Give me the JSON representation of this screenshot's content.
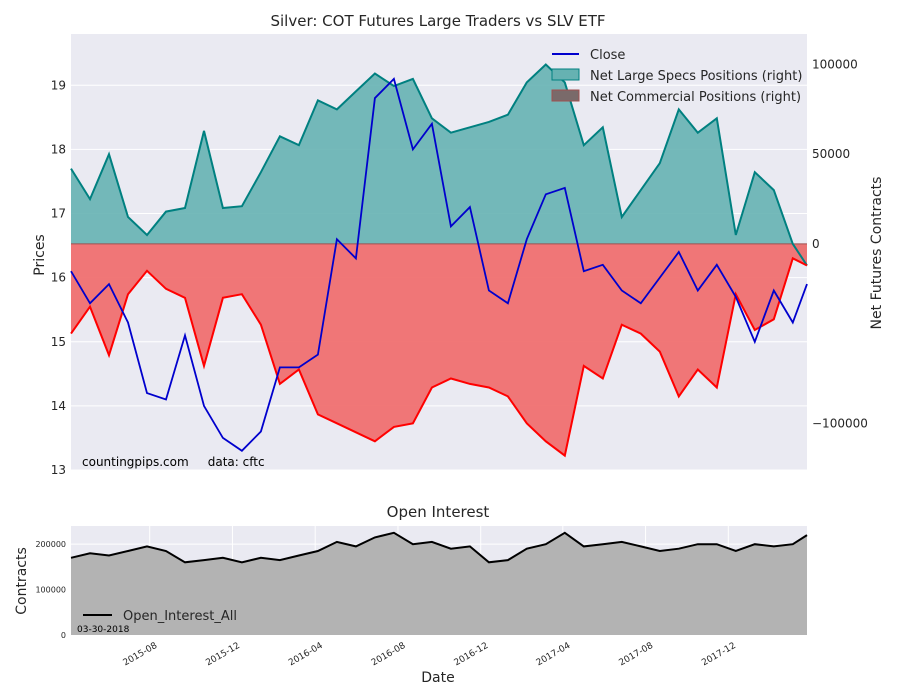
{
  "chart_data": [
    {
      "type": "line",
      "title": "Silver: COT Futures Large Traders vs SLV ETF",
      "ylabel_left": "Prices",
      "ylabel_right": "Net Futures Contracts",
      "ylim_left": [
        13,
        19.8
      ],
      "ylim_right": [
        -126000,
        117000
      ],
      "yticks_left": [
        13,
        14,
        15,
        16,
        17,
        18,
        19
      ],
      "yticks_right": [
        -100000,
        0,
        50000,
        100000
      ],
      "ytick_labels_right": [
        "−100000",
        "0",
        "50000",
        "100000"
      ],
      "legend_position": "upper-right",
      "grid": true,
      "annotation": "countingpips.com     data: cftc",
      "colors": {
        "close": "#0000cd",
        "specs_line": "#008080",
        "specs_fill": "#66b2b2",
        "comm_line": "#ff0000",
        "comm_fill": "#f07070",
        "plot_bg": "#eaeaf2"
      },
      "series": [
        {
          "name": "Close",
          "axis": "left",
          "x": [
            "2015-04-07",
            "2015-05-05",
            "2015-06-02",
            "2015-06-30",
            "2015-07-28",
            "2015-08-25",
            "2015-09-22",
            "2015-10-20",
            "2015-11-17",
            "2015-12-15",
            "2016-01-12",
            "2016-02-09",
            "2016-03-08",
            "2016-04-05",
            "2016-05-03",
            "2016-05-31",
            "2016-06-28",
            "2016-07-26",
            "2016-08-23",
            "2016-09-20",
            "2016-10-18",
            "2016-11-15",
            "2016-12-13",
            "2017-01-10",
            "2017-02-07",
            "2017-03-07",
            "2017-04-04",
            "2017-05-02",
            "2017-05-30",
            "2017-06-27",
            "2017-07-25",
            "2017-08-22",
            "2017-09-19",
            "2017-10-17",
            "2017-11-14",
            "2017-12-12",
            "2018-01-09",
            "2018-02-06",
            "2018-03-06",
            "2018-03-27"
          ],
          "values": [
            16.1,
            15.6,
            15.9,
            15.3,
            14.2,
            14.1,
            15.1,
            14.0,
            13.5,
            13.3,
            13.6,
            14.6,
            14.6,
            14.8,
            16.6,
            16.3,
            18.8,
            19.1,
            18.0,
            18.4,
            16.8,
            17.1,
            15.8,
            15.6,
            16.6,
            17.3,
            17.4,
            16.1,
            16.2,
            15.8,
            15.6,
            16.0,
            16.4,
            15.8,
            16.2,
            15.7,
            15.0,
            15.8,
            15.3,
            15.9
          ]
        },
        {
          "name": "Net Large Specs Positions (right)",
          "axis": "right",
          "x": [
            "2015-04-07",
            "2015-05-05",
            "2015-06-02",
            "2015-06-30",
            "2015-07-28",
            "2015-08-25",
            "2015-09-22",
            "2015-10-20",
            "2015-11-17",
            "2015-12-15",
            "2016-01-12",
            "2016-02-09",
            "2016-03-08",
            "2016-04-05",
            "2016-05-03",
            "2016-05-31",
            "2016-06-28",
            "2016-07-26",
            "2016-08-23",
            "2016-09-20",
            "2016-10-18",
            "2016-11-15",
            "2016-12-13",
            "2017-01-10",
            "2017-02-07",
            "2017-03-07",
            "2017-04-04",
            "2017-05-02",
            "2017-05-30",
            "2017-06-27",
            "2017-07-25",
            "2017-08-22",
            "2017-09-19",
            "2017-10-17",
            "2017-11-14",
            "2017-12-12",
            "2018-01-09",
            "2018-02-06",
            "2018-03-06",
            "2018-03-27"
          ],
          "values": [
            42000,
            25000,
            50000,
            15000,
            5000,
            18000,
            20000,
            63000,
            20000,
            21000,
            40000,
            60000,
            55000,
            80000,
            75000,
            85000,
            95000,
            88000,
            92000,
            70000,
            62000,
            65000,
            68000,
            72000,
            90000,
            100000,
            90000,
            55000,
            65000,
            15000,
            30000,
            45000,
            75000,
            62000,
            70000,
            5000,
            40000,
            30000,
            0,
            -12000
          ]
        },
        {
          "name": "Net Commercial Positions (right)",
          "axis": "right",
          "x": [
            "2015-04-07",
            "2015-05-05",
            "2015-06-02",
            "2015-06-30",
            "2015-07-28",
            "2015-08-25",
            "2015-09-22",
            "2015-10-20",
            "2015-11-17",
            "2015-12-15",
            "2016-01-12",
            "2016-02-09",
            "2016-03-08",
            "2016-04-05",
            "2016-05-03",
            "2016-05-31",
            "2016-06-28",
            "2016-07-26",
            "2016-08-23",
            "2016-09-20",
            "2016-10-18",
            "2016-11-15",
            "2016-12-13",
            "2017-01-10",
            "2017-02-07",
            "2017-03-07",
            "2017-04-04",
            "2017-05-02",
            "2017-05-30",
            "2017-06-27",
            "2017-07-25",
            "2017-08-22",
            "2017-09-19",
            "2017-10-17",
            "2017-11-14",
            "2017-12-12",
            "2018-01-09",
            "2018-02-06",
            "2018-03-06",
            "2018-03-27"
          ],
          "values": [
            -50000,
            -35000,
            -62000,
            -28000,
            -15000,
            -25000,
            -30000,
            -68000,
            -30000,
            -28000,
            -45000,
            -78000,
            -70000,
            -95000,
            -100000,
            -105000,
            -110000,
            -102000,
            -100000,
            -80000,
            -75000,
            -78000,
            -80000,
            -85000,
            -100000,
            -110000,
            -118000,
            -68000,
            -75000,
            -45000,
            -50000,
            -60000,
            -85000,
            -70000,
            -80000,
            -28000,
            -48000,
            -42000,
            -8000,
            -12000
          ]
        }
      ]
    },
    {
      "type": "area",
      "title": "Open Interest",
      "xlabel": "Date",
      "ylabel": "Contracts",
      "ylim": [
        0,
        240000
      ],
      "yticks": [
        0,
        100000,
        200000
      ],
      "x_tick_labels": [
        "2015-08",
        "2015-12",
        "2016-04",
        "2016-08",
        "2016-12",
        "2017-04",
        "2017-08",
        "2017-12"
      ],
      "legend_position": "lower-left",
      "annotation": "03-30-2018",
      "colors": {
        "line": "#000000",
        "fill": "#b3b3b3",
        "plot_bg": "#eaeaf2"
      },
      "series": [
        {
          "name": "Open_Interest_All",
          "x": [
            "2015-04-07",
            "2015-05-05",
            "2015-06-02",
            "2015-06-30",
            "2015-07-28",
            "2015-08-25",
            "2015-09-22",
            "2015-10-20",
            "2015-11-17",
            "2015-12-15",
            "2016-01-12",
            "2016-02-09",
            "2016-03-08",
            "2016-04-05",
            "2016-05-03",
            "2016-05-31",
            "2016-06-28",
            "2016-07-26",
            "2016-08-23",
            "2016-09-20",
            "2016-10-18",
            "2016-11-15",
            "2016-12-13",
            "2017-01-10",
            "2017-02-07",
            "2017-03-07",
            "2017-04-04",
            "2017-05-02",
            "2017-05-30",
            "2017-06-27",
            "2017-07-25",
            "2017-08-22",
            "2017-09-19",
            "2017-10-17",
            "2017-11-14",
            "2017-12-12",
            "2018-01-09",
            "2018-02-06",
            "2018-03-06",
            "2018-03-27"
          ],
          "values": [
            170000,
            180000,
            175000,
            185000,
            195000,
            185000,
            160000,
            165000,
            170000,
            160000,
            170000,
            165000,
            175000,
            185000,
            205000,
            195000,
            215000,
            225000,
            200000,
            205000,
            190000,
            195000,
            160000,
            165000,
            190000,
            200000,
            225000,
            195000,
            200000,
            205000,
            195000,
            185000,
            190000,
            200000,
            200000,
            185000,
            200000,
            195000,
            200000,
            220000
          ]
        }
      ]
    }
  ]
}
